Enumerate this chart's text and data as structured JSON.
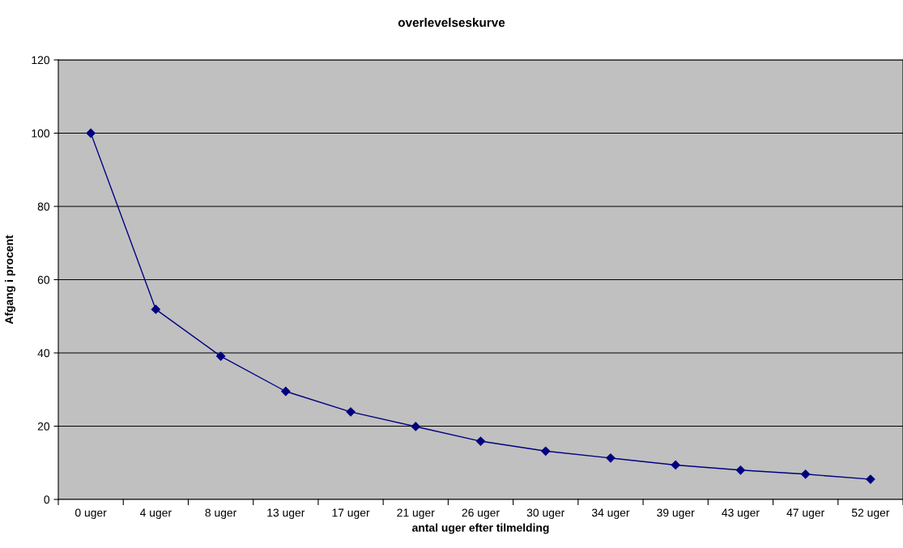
{
  "chart_data": {
    "type": "line",
    "title": "overlevelseskurve",
    "xlabel": "antal uger efter tilmelding",
    "ylabel": "Afgang i procent",
    "categories": [
      "0 uger",
      "4 uger",
      "8 uger",
      "13 uger",
      "17 uger",
      "21 uger",
      "26 uger",
      "30 uger",
      "34 uger",
      "39 uger",
      "43 uger",
      "47 uger",
      "52 uger"
    ],
    "series": [
      {
        "color": "#000080",
        "values": [
          100,
          51.9,
          39.1,
          29.5,
          23.9,
          19.9,
          15.9,
          13.2,
          11.3,
          9.4,
          8.0,
          6.9,
          5.5
        ]
      }
    ],
    "ylim": [
      0,
      120
    ],
    "yticks": [
      0,
      20,
      40,
      60,
      80,
      100,
      120
    ],
    "grid": "y",
    "legend": false,
    "marker": "diamond",
    "line_style": "solid"
  }
}
